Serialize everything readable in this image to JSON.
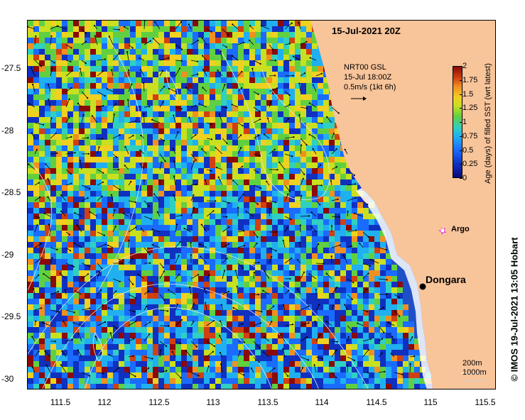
{
  "title": "15-Jul-2021 20Z",
  "vector_legend": {
    "line1": "NRT00 GSL",
    "line2": "15-Jul 18:00Z",
    "line3": "0.5m/s (1kt 6h)"
  },
  "colorbar": {
    "title": "Age (days) of filled SST (wrt latest)",
    "ticks": [
      "2",
      "1.75",
      "1.5",
      "1.25",
      "1",
      "0.75",
      "0.5",
      "0.25",
      "0"
    ]
  },
  "axes": {
    "x_ticks": [
      "111.5",
      "112",
      "112.5",
      "113",
      "113.5",
      "114",
      "114.5",
      "115",
      "115.5"
    ],
    "y_ticks": [
      "-27.5",
      "-28",
      "-28.5",
      "-29",
      "-29.5",
      "-30"
    ]
  },
  "places": {
    "argo": "Argo",
    "dongara": "Dongara"
  },
  "isobaths": [
    "200m",
    "1000m"
  ],
  "credit": "© IMOS 19-Jul-2021 13:05 Hobart",
  "colors": {
    "land": "#f8c49a",
    "argo_marker": "#e040e0"
  }
}
